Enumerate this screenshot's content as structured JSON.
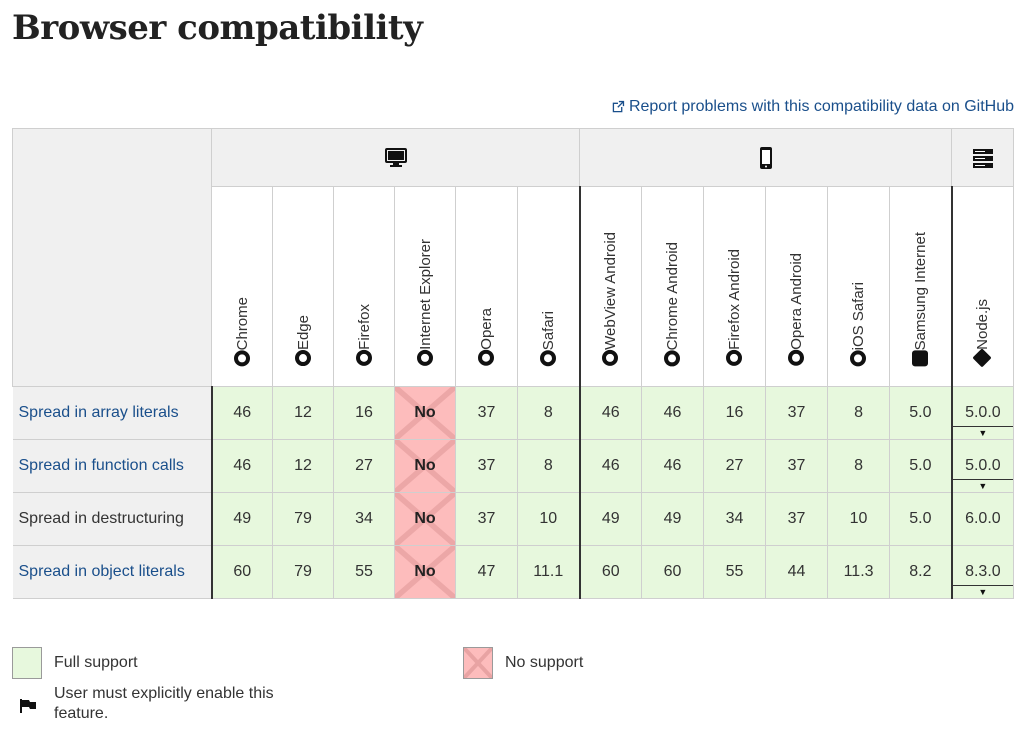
{
  "title": "Browser compatibility",
  "report_link": "Report problems with this compatibility data on GitHub",
  "platforms": [
    "desktop",
    "mobile",
    "server"
  ],
  "browsers": [
    {
      "name": "Chrome",
      "icon": "chrome-icon"
    },
    {
      "name": "Edge",
      "icon": "edge-icon"
    },
    {
      "name": "Firefox",
      "icon": "firefox-icon"
    },
    {
      "name": "Internet Explorer",
      "icon": "ie-icon"
    },
    {
      "name": "Opera",
      "icon": "opera-icon"
    },
    {
      "name": "Safari",
      "icon": "safari-icon"
    },
    {
      "name": "WebView Android",
      "icon": "android-icon"
    },
    {
      "name": "Chrome Android",
      "icon": "chrome-icon"
    },
    {
      "name": "Firefox Android",
      "icon": "firefox-icon"
    },
    {
      "name": "Opera Android",
      "icon": "opera-icon"
    },
    {
      "name": "iOS Safari",
      "icon": "safari-icon"
    },
    {
      "name": "Samsung Internet",
      "icon": "samsung-internet-icon"
    },
    {
      "name": "Node.js",
      "icon": "nodejs-icon"
    }
  ],
  "rows": [
    {
      "feature": "Spread in array literals",
      "link": true,
      "values": [
        "46",
        "12",
        "16",
        "No",
        "37",
        "8",
        "46",
        "46",
        "16",
        "37",
        "8",
        "5.0",
        "5.0.0"
      ]
    },
    {
      "feature": "Spread in function calls",
      "link": true,
      "values": [
        "46",
        "12",
        "27",
        "No",
        "37",
        "8",
        "46",
        "46",
        "27",
        "37",
        "8",
        "5.0",
        "5.0.0"
      ]
    },
    {
      "feature": "Spread in destructuring",
      "link": false,
      "values": [
        "49",
        "79",
        "34",
        "No",
        "37",
        "10",
        "49",
        "49",
        "34",
        "37",
        "10",
        "5.0",
        "6.0.0"
      ]
    },
    {
      "feature": "Spread in object literals",
      "link": true,
      "values": [
        "60",
        "79",
        "55",
        "No",
        "47",
        "11.1",
        "60",
        "60",
        "55",
        "44",
        "11.3",
        "8.2",
        "8.3.0"
      ]
    }
  ],
  "expandable_rows": [
    0,
    1,
    3
  ],
  "legend": {
    "full_support": "Full support",
    "no_support": "No support",
    "flag_text_line1": "User must explicitly enable this",
    "flag_text_line2": "feature."
  },
  "colors": {
    "full": "#e7f8dd",
    "no": "#fdbcbc",
    "link": "#1a4f8b"
  }
}
